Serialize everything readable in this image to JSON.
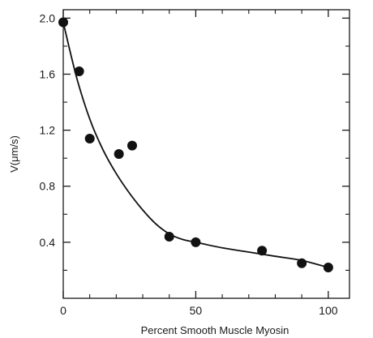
{
  "chart_data": {
    "type": "scatter",
    "title": "",
    "xlabel": "Percent Smooth Muscle Myosin",
    "ylabel": "V(μm/s)",
    "xlim": [
      0,
      108
    ],
    "ylim": [
      0,
      2.06
    ],
    "x_ticks": [
      0,
      50,
      100
    ],
    "x_minor_ticks": [
      10,
      20,
      30,
      40,
      60,
      70,
      80,
      90
    ],
    "y_ticks": [
      0.4,
      0.8,
      1.2,
      1.6,
      2.0
    ],
    "y_tick_labels": [
      "0.4",
      "0.8",
      "1.2",
      "1.6",
      "2.0"
    ],
    "y_minor_ticks": [
      0.2,
      0.6,
      1.0,
      1.4,
      1.8
    ],
    "grid": false,
    "legend": "none",
    "colors": {
      "points": "#111111",
      "curve": "#111111",
      "axes": "#1a1a1a"
    },
    "series": [
      {
        "type": "scatter",
        "x": [
          0,
          6,
          10,
          21,
          26,
          40,
          50,
          75,
          90,
          100
        ],
        "y": [
          1.97,
          1.62,
          1.14,
          1.03,
          1.09,
          0.44,
          0.4,
          0.34,
          0.25,
          0.22
        ]
      },
      {
        "type": "line",
        "x": [
          0,
          5,
          10,
          15,
          20,
          25,
          30,
          35,
          40,
          45,
          50,
          60,
          70,
          80,
          90,
          100
        ],
        "y": [
          1.97,
          1.58,
          1.28,
          1.06,
          0.89,
          0.75,
          0.63,
          0.53,
          0.46,
          0.42,
          0.4,
          0.36,
          0.33,
          0.3,
          0.27,
          0.22
        ]
      }
    ]
  }
}
